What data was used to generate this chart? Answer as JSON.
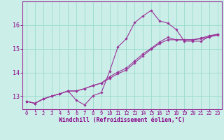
{
  "xlabel": "Windchill (Refroidissement éolien,°C)",
  "bg_color": "#cceee8",
  "line_color": "#993399",
  "grid_color": "#99ddcc",
  "xlim": [
    -0.5,
    23.5
  ],
  "ylim": [
    12.45,
    17.0
  ],
  "yticks": [
    13,
    14,
    15,
    16
  ],
  "xticks": [
    0,
    1,
    2,
    3,
    4,
    5,
    6,
    7,
    8,
    9,
    10,
    11,
    12,
    13,
    14,
    15,
    16,
    17,
    18,
    19,
    20,
    21,
    22,
    23
  ],
  "series1_x": [
    0,
    1,
    2,
    3,
    4,
    5,
    6,
    7,
    8,
    9,
    10,
    11,
    12,
    13,
    14,
    15,
    16,
    17,
    18,
    19,
    20,
    21,
    22,
    23
  ],
  "series1_y": [
    12.78,
    12.7,
    12.88,
    13.0,
    13.1,
    13.22,
    12.82,
    12.63,
    13.02,
    13.15,
    14.05,
    15.08,
    15.42,
    16.1,
    16.38,
    16.62,
    16.18,
    16.08,
    15.82,
    15.32,
    15.32,
    15.32,
    15.52,
    15.6
  ],
  "series2_x": [
    0,
    1,
    2,
    3,
    4,
    5,
    6,
    7,
    8,
    9,
    10,
    11,
    12,
    13,
    14,
    15,
    16,
    17,
    18,
    19,
    20,
    21,
    22,
    23
  ],
  "series2_y": [
    12.78,
    12.7,
    12.88,
    13.0,
    13.1,
    13.22,
    13.22,
    13.32,
    13.45,
    13.55,
    13.82,
    14.02,
    14.18,
    14.48,
    14.78,
    15.02,
    15.28,
    15.48,
    15.38,
    15.38,
    15.38,
    15.45,
    15.55,
    15.62
  ],
  "series3_x": [
    0,
    1,
    2,
    3,
    4,
    5,
    6,
    7,
    8,
    9,
    10,
    11,
    12,
    13,
    14,
    15,
    16,
    17,
    18,
    19,
    20,
    21,
    22,
    23
  ],
  "series3_y": [
    12.78,
    12.7,
    12.88,
    13.0,
    13.1,
    13.22,
    13.22,
    13.32,
    13.45,
    13.55,
    13.75,
    13.95,
    14.1,
    14.4,
    14.7,
    14.98,
    15.22,
    15.38,
    15.38,
    15.38,
    15.38,
    15.42,
    15.5,
    15.58
  ]
}
